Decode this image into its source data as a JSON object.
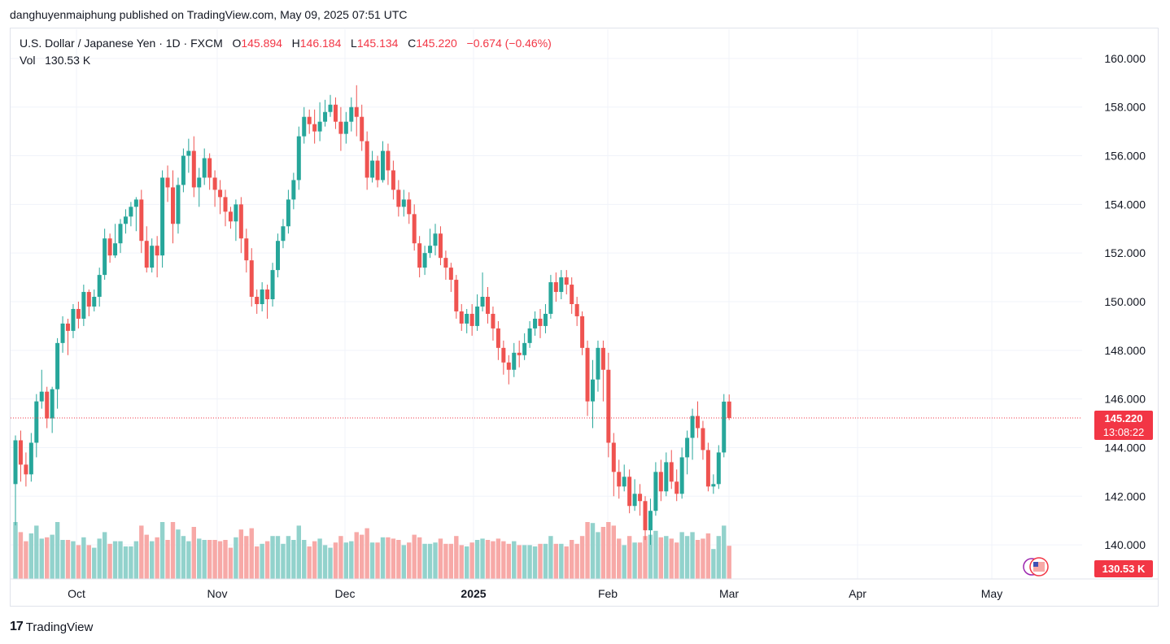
{
  "publisher_line": "danghuyenmaiphung published on TradingView.com, May 09, 2025 07:51 UTC",
  "legend": {
    "symbol": "U.S. Dollar / Japanese Yen · 1D · FXCM",
    "open_label": "O",
    "open_value": "145.894",
    "high_label": "H",
    "high_value": "146.184",
    "low_label": "L",
    "low_value": "145.134",
    "close_label": "C",
    "close_value": "145.220",
    "change": "−0.674 (−0.46%)",
    "vol_label": "Vol",
    "vol_value": "130.53 K"
  },
  "price_tag": {
    "price": "145.220",
    "countdown": "13:08:22"
  },
  "volume_tag": "130.53 K",
  "footer": {
    "brand": "TradingView",
    "brand_mark": "17"
  },
  "colors": {
    "up": "#26a69a",
    "down": "#ef5350",
    "vol_up": "#92d2cc",
    "vol_down": "#f7a9a7",
    "tag": "#f23645"
  },
  "chart_data": {
    "type": "candlestick",
    "title": "U.S. Dollar / Japanese Yen · 1D · FXCM",
    "y_axis": {
      "min": 140,
      "max": 160,
      "ticks": [
        "160.000",
        "158.000",
        "156.000",
        "154.000",
        "152.000",
        "150.000",
        "148.000",
        "146.000",
        "144.000",
        "142.000",
        "140.000"
      ],
      "position": "right"
    },
    "x_ticks": [
      "Oct",
      "Nov",
      "Dec",
      "2025",
      "Feb",
      "Mar",
      "Apr",
      "May"
    ],
    "last_price": 145.22,
    "candles": [
      [
        142.5,
        144.3,
        144.5,
        140.8
      ],
      [
        144.3,
        143.3,
        144.7,
        142.6
      ],
      [
        143.3,
        142.9,
        143.8,
        142.4
      ],
      [
        142.9,
        144.2,
        144.6,
        142.6
      ],
      [
        144.2,
        145.9,
        146.2,
        143.6
      ],
      [
        145.9,
        146.3,
        147.2,
        145.6
      ],
      [
        146.3,
        145.2,
        146.5,
        144.8
      ],
      [
        145.2,
        146.4,
        146.5,
        144.6
      ],
      [
        146.4,
        148.3,
        148.5,
        145.6
      ],
      [
        148.3,
        149.1,
        149.4,
        147.9
      ],
      [
        149.1,
        148.8,
        149.3,
        147.8
      ],
      [
        148.8,
        149.7,
        149.9,
        148.5
      ],
      [
        149.7,
        149.3,
        150.0,
        148.9
      ],
      [
        149.3,
        150.4,
        150.7,
        149.0
      ],
      [
        150.4,
        149.8,
        150.5,
        149.4
      ],
      [
        149.8,
        150.2,
        150.5,
        149.6
      ],
      [
        150.2,
        151.1,
        151.4,
        149.8
      ],
      [
        151.1,
        152.6,
        153.0,
        150.9
      ],
      [
        152.6,
        151.9,
        152.8,
        151.6
      ],
      [
        151.9,
        152.4,
        153.2,
        151.8
      ],
      [
        152.4,
        153.2,
        153.4,
        152.0
      ],
      [
        153.2,
        153.5,
        153.8,
        152.8
      ],
      [
        153.5,
        153.9,
        154.1,
        153.1
      ],
      [
        153.9,
        154.2,
        154.3,
        152.9
      ],
      [
        154.2,
        152.5,
        154.6,
        152.0
      ],
      [
        152.5,
        151.4,
        153.1,
        151.2
      ],
      [
        151.4,
        152.3,
        152.6,
        151.2
      ],
      [
        152.3,
        151.9,
        152.7,
        151.0
      ],
      [
        151.9,
        155.1,
        155.4,
        151.4
      ],
      [
        155.1,
        154.7,
        155.6,
        154.1
      ],
      [
        154.7,
        153.2,
        155.4,
        152.4
      ],
      [
        153.2,
        154.8,
        155.1,
        152.8
      ],
      [
        154.8,
        156.0,
        156.3,
        154.5
      ],
      [
        156.0,
        156.2,
        156.7,
        155.3
      ],
      [
        156.2,
        154.7,
        156.8,
        154.3
      ],
      [
        154.7,
        155.1,
        155.5,
        153.9
      ],
      [
        155.1,
        155.9,
        156.3,
        154.8
      ],
      [
        155.9,
        155.1,
        156.1,
        154.6
      ],
      [
        155.1,
        154.6,
        155.4,
        153.9
      ],
      [
        154.6,
        154.3,
        155.0,
        153.6
      ],
      [
        154.3,
        153.7,
        154.6,
        153.1
      ],
      [
        153.7,
        153.3,
        153.9,
        153.0
      ],
      [
        153.3,
        154.0,
        154.2,
        152.5
      ],
      [
        154.0,
        152.6,
        154.3,
        152.0
      ],
      [
        152.6,
        151.7,
        153.0,
        151.2
      ],
      [
        151.7,
        150.2,
        152.2,
        149.8
      ],
      [
        150.2,
        149.9,
        150.5,
        149.5
      ],
      [
        149.9,
        150.5,
        150.8,
        149.6
      ],
      [
        150.5,
        150.1,
        150.7,
        149.3
      ],
      [
        150.1,
        151.3,
        151.6,
        149.8
      ],
      [
        151.3,
        152.5,
        152.8,
        151.0
      ],
      [
        152.5,
        153.1,
        153.4,
        152.2
      ],
      [
        153.1,
        154.2,
        154.6,
        152.8
      ],
      [
        154.2,
        155.0,
        155.3,
        153.8
      ],
      [
        155.0,
        156.8,
        157.2,
        154.6
      ],
      [
        156.8,
        157.6,
        158.0,
        156.5
      ],
      [
        157.6,
        157.3,
        157.9,
        156.9
      ],
      [
        157.3,
        157.0,
        157.9,
        156.5
      ],
      [
        157.0,
        157.4,
        158.2,
        156.6
      ],
      [
        157.4,
        157.8,
        158.3,
        157.2
      ],
      [
        157.8,
        158.1,
        158.5,
        157.6
      ],
      [
        158.1,
        157.4,
        158.4,
        157.1
      ],
      [
        157.4,
        156.9,
        158.0,
        156.2
      ],
      [
        156.9,
        157.4,
        157.8,
        156.5
      ],
      [
        157.4,
        158.0,
        158.4,
        157.0
      ],
      [
        158.0,
        157.6,
        158.9,
        156.8
      ],
      [
        157.6,
        156.6,
        158.1,
        156.2
      ],
      [
        156.6,
        155.1,
        157.0,
        154.6
      ],
      [
        155.1,
        155.8,
        156.2,
        154.9
      ],
      [
        155.8,
        155.0,
        156.0,
        154.7
      ],
      [
        155.0,
        156.2,
        156.6,
        154.9
      ],
      [
        156.2,
        155.4,
        156.5,
        154.8
      ],
      [
        155.4,
        154.6,
        155.8,
        154.2
      ],
      [
        154.6,
        153.9,
        155.0,
        153.5
      ],
      [
        153.9,
        154.2,
        154.6,
        153.5
      ],
      [
        154.2,
        153.6,
        154.5,
        153.2
      ],
      [
        153.6,
        152.4,
        154.0,
        152.1
      ],
      [
        152.4,
        151.4,
        152.7,
        151.0
      ],
      [
        151.4,
        152.0,
        152.3,
        151.1
      ],
      [
        152.0,
        152.3,
        153.0,
        151.8
      ],
      [
        152.3,
        152.8,
        153.2,
        151.9
      ],
      [
        152.8,
        151.8,
        153.1,
        151.5
      ],
      [
        151.8,
        151.4,
        152.1,
        150.9
      ],
      [
        151.4,
        150.9,
        151.6,
        150.4
      ],
      [
        150.9,
        149.6,
        151.1,
        149.3
      ],
      [
        149.6,
        149.1,
        149.9,
        148.8
      ],
      [
        149.1,
        149.5,
        149.7,
        148.7
      ],
      [
        149.5,
        149.0,
        149.9,
        148.6
      ],
      [
        149.0,
        149.8,
        150.3,
        148.8
      ],
      [
        149.8,
        150.2,
        151.2,
        149.6
      ],
      [
        150.2,
        149.5,
        150.6,
        149.1
      ],
      [
        149.5,
        148.9,
        149.8,
        148.4
      ],
      [
        148.9,
        148.1,
        149.2,
        147.6
      ],
      [
        148.1,
        147.5,
        148.4,
        147.0
      ],
      [
        147.5,
        147.2,
        147.8,
        146.6
      ],
      [
        147.2,
        147.9,
        148.3,
        146.9
      ],
      [
        147.9,
        147.8,
        148.4,
        147.3
      ],
      [
        147.8,
        148.3,
        148.7,
        147.6
      ],
      [
        148.3,
        148.9,
        149.2,
        148.1
      ],
      [
        148.9,
        149.3,
        149.6,
        148.6
      ],
      [
        149.3,
        149.0,
        149.7,
        148.5
      ],
      [
        149.0,
        149.5,
        149.9,
        148.7
      ],
      [
        149.5,
        150.8,
        151.1,
        149.3
      ],
      [
        150.8,
        150.4,
        151.2,
        150.0
      ],
      [
        150.4,
        151.0,
        151.3,
        150.1
      ],
      [
        151.0,
        150.7,
        151.3,
        150.3
      ],
      [
        150.7,
        149.9,
        151.0,
        149.5
      ],
      [
        149.9,
        149.4,
        150.2,
        149.0
      ],
      [
        149.4,
        148.1,
        149.6,
        147.8
      ],
      [
        148.1,
        145.9,
        148.4,
        145.3
      ],
      [
        145.9,
        146.8,
        147.6,
        144.8
      ],
      [
        146.8,
        148.1,
        148.4,
        146.3
      ],
      [
        148.1,
        147.2,
        148.4,
        145.9
      ],
      [
        147.2,
        144.2,
        147.9,
        143.6
      ],
      [
        144.2,
        143.0,
        144.6,
        142.0
      ],
      [
        143.0,
        142.4,
        143.5,
        141.9
      ],
      [
        142.4,
        142.8,
        143.3,
        142.2
      ],
      [
        142.8,
        141.6,
        143.1,
        141.3
      ],
      [
        141.6,
        142.1,
        142.7,
        141.4
      ],
      [
        142.1,
        141.8,
        142.5,
        141.2
      ],
      [
        141.8,
        140.6,
        142.0,
        140.2
      ],
      [
        140.6,
        141.4,
        141.9,
        140.0
      ],
      [
        141.4,
        143.0,
        143.4,
        141.2
      ],
      [
        143.0,
        142.2,
        143.5,
        141.8
      ],
      [
        142.2,
        143.4,
        143.8,
        142.0
      ],
      [
        143.4,
        142.6,
        143.9,
        142.3
      ],
      [
        142.6,
        142.1,
        143.1,
        141.8
      ],
      [
        142.1,
        143.6,
        144.0,
        141.9
      ],
      [
        143.6,
        144.4,
        144.7,
        142.9
      ],
      [
        144.4,
        145.3,
        145.6,
        143.5
      ],
      [
        145.3,
        144.8,
        145.9,
        144.4
      ],
      [
        144.8,
        143.9,
        145.1,
        143.5
      ],
      [
        143.9,
        142.4,
        144.2,
        142.2
      ],
      [
        142.4,
        142.5,
        142.9,
        142.1
      ],
      [
        142.5,
        143.8,
        144.1,
        142.3
      ],
      [
        143.8,
        145.89,
        146.2,
        143.6
      ],
      [
        145.894,
        145.22,
        146.184,
        145.134
      ]
    ]
  }
}
